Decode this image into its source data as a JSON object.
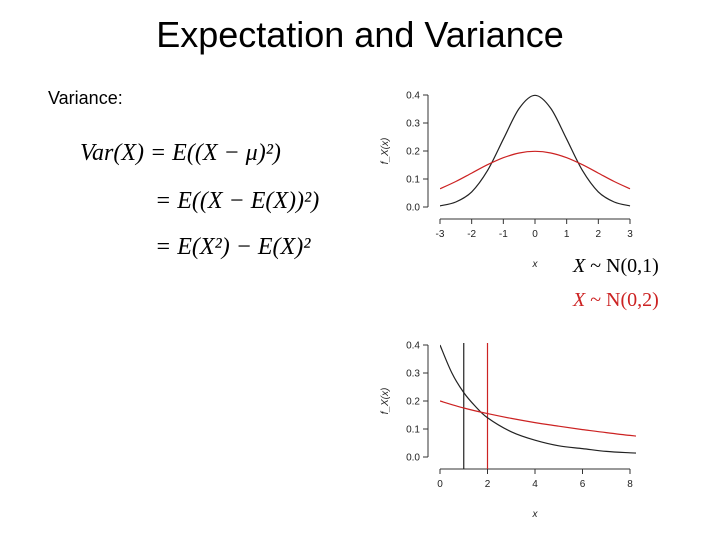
{
  "slide": {
    "title": "Expectation and Variance",
    "subheading": "Variance:"
  },
  "formula": {
    "line1": "Var(X) = E((X − μ)²)",
    "line2": "= E((X − E(X))²)",
    "line3": "= E(X²) − E(X)²"
  },
  "legend": {
    "black_series": {
      "var": "X",
      "rest": " ~ N(0,1)"
    },
    "red_series": {
      "var": "X",
      "rest": " ~ N(0,2)"
    }
  },
  "colors": {
    "black": "#222222",
    "red": "#cc2222",
    "text": "#000000"
  },
  "chart_data": [
    {
      "type": "line",
      "xlabel": "x",
      "ylabel": "f_X(x)",
      "xlim": [
        -3,
        3
      ],
      "ylim": [
        0,
        0.4
      ],
      "xticks": [
        "-3",
        "-2",
        "-1",
        "0",
        "1",
        "2",
        "3"
      ],
      "yticks": [
        "0.0",
        "0.1",
        "0.2",
        "0.3",
        "0.4"
      ],
      "series": [
        {
          "name": "X ~ N(0,1)",
          "color": "#222222",
          "x": [
            -3,
            -2.5,
            -2,
            -1.5,
            -1,
            -0.5,
            0,
            0.5,
            1,
            1.5,
            2,
            2.5,
            3
          ],
          "y": [
            0.004,
            0.018,
            0.054,
            0.13,
            0.242,
            0.352,
            0.399,
            0.352,
            0.242,
            0.13,
            0.054,
            0.018,
            0.004
          ]
        },
        {
          "name": "X ~ N(0,2)",
          "color": "#cc2222",
          "x": [
            -3,
            -2.5,
            -2,
            -1.5,
            -1,
            -0.5,
            0,
            0.5,
            1,
            1.5,
            2,
            2.5,
            3
          ],
          "y": [
            0.065,
            0.091,
            0.121,
            0.151,
            0.176,
            0.193,
            0.199,
            0.193,
            0.176,
            0.151,
            0.121,
            0.091,
            0.065
          ]
        }
      ]
    },
    {
      "type": "line",
      "xlabel": "x",
      "ylabel": "f_X(x)",
      "xlim": [
        0,
        8
      ],
      "ylim": [
        0,
        0.4
      ],
      "xticks": [
        "0",
        "2",
        "4",
        "6",
        "8"
      ],
      "yticks": [
        "0.0",
        "0.1",
        "0.2",
        "0.3",
        "0.4"
      ],
      "series": [
        {
          "color": "#222222",
          "x": [
            0,
            0.5,
            1,
            1.5,
            2,
            3,
            4,
            5,
            6,
            7,
            8,
            9
          ],
          "y": [
            0.4,
            0.3,
            0.23,
            0.18,
            0.14,
            0.09,
            0.06,
            0.04,
            0.03,
            0.02,
            0.015,
            0.012
          ]
        },
        {
          "color": "#cc2222",
          "x": [
            0,
            1,
            2,
            3,
            4,
            5,
            6,
            7,
            8,
            9
          ],
          "y": [
            0.2,
            0.175,
            0.155,
            0.138,
            0.123,
            0.11,
            0.098,
            0.087,
            0.077,
            0.068
          ]
        }
      ],
      "vlines": [
        {
          "x": 1,
          "color": "#222222"
        },
        {
          "x": 2,
          "color": "#cc2222"
        }
      ]
    }
  ]
}
